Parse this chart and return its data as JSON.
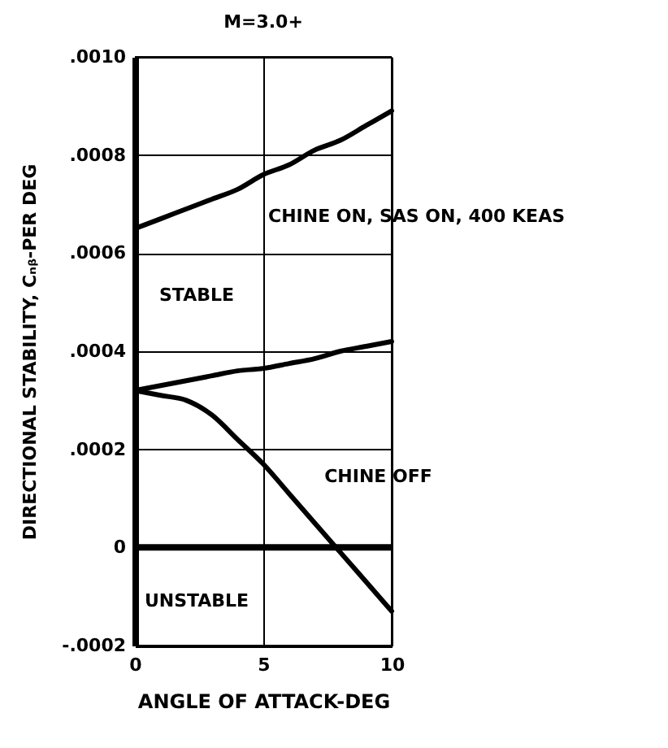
{
  "chart_data": {
    "type": "line",
    "title": "M=3.0+",
    "xlabel": "ANGLE OF ATTACK-DEG",
    "ylabel": "DIRECTIONAL STABILITY, Cₙᵦ-PER DEG",
    "x": [
      0,
      1,
      2,
      3,
      4,
      5,
      6,
      7,
      8,
      9,
      10
    ],
    "series": [
      {
        "name": "CHINE ON, SAS ON, 400 KEAS",
        "color": "#000000",
        "values": [
          0.00065,
          0.00067,
          0.00069,
          0.00071,
          0.00073,
          0.00076,
          0.00078,
          0.00081,
          0.00083,
          0.00086,
          0.00089
        ]
      },
      {
        "color": "#000000",
        "values": [
          0.00032,
          0.00033,
          0.00034,
          0.00035,
          0.00036,
          0.000365,
          0.000375,
          0.000385,
          0.0004,
          0.00041,
          0.00042
        ]
      },
      {
        "name": "CHINE OFF",
        "color": "#000000",
        "values": [
          0.00032,
          0.00031,
          0.0003,
          0.00027,
          0.00022,
          0.00017,
          0.00011,
          5e-05,
          -1e-05,
          -7e-05,
          -0.00013
        ]
      }
    ],
    "xlim": [
      0,
      10
    ],
    "xticks": [
      0,
      5,
      10
    ],
    "ylim": [
      -0.0002,
      0.001
    ],
    "yticks": [
      {
        "value": -0.0002,
        "label": "-.0002"
      },
      {
        "value": 0,
        "label": "0"
      },
      {
        "value": 0.0002,
        "label": ".0002"
      },
      {
        "value": 0.0004,
        "label": ".0004"
      },
      {
        "value": 0.0006,
        "label": ".0006"
      },
      {
        "value": 0.0008,
        "label": ".0008"
      },
      {
        "value": 0.001,
        "label": ".0010"
      }
    ],
    "ref_lines": [
      {
        "axis": "y",
        "value": 0,
        "color": "#000000"
      }
    ],
    "annotations": [
      "STABLE",
      "UNSTABLE"
    ],
    "grid": true,
    "marker": "none",
    "line_style": "solid"
  }
}
